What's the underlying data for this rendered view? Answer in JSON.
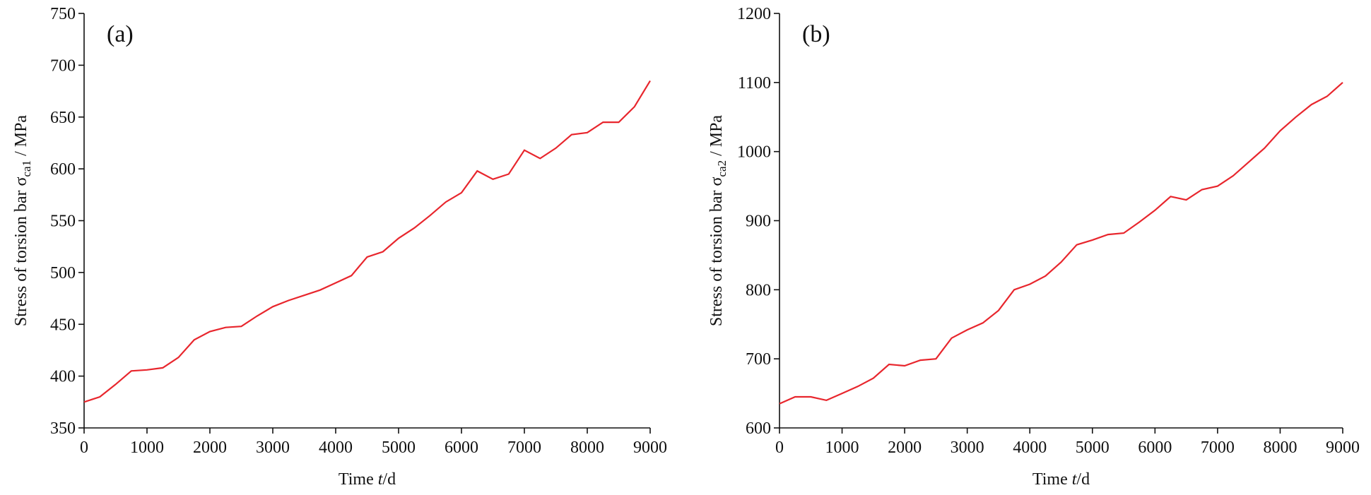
{
  "chart_data": [
    {
      "type": "line",
      "panel_label": "(a)",
      "ylabel": {
        "main": "Stress of torsion bar σ",
        "sub": "ca1",
        "unit": " / MPa"
      },
      "xlabel": {
        "main": "Time ",
        "italic": "t",
        "unit": "/d"
      },
      "xlim": [
        0,
        9000
      ],
      "xticks": [
        0,
        1000,
        2000,
        3000,
        4000,
        5000,
        6000,
        7000,
        8000,
        9000
      ],
      "ylim": [
        350,
        750
      ],
      "yticks": [
        350,
        400,
        450,
        500,
        550,
        600,
        650,
        700,
        750
      ],
      "x": [
        0,
        250,
        500,
        750,
        1000,
        1250,
        1500,
        1750,
        2000,
        2250,
        2500,
        2750,
        3000,
        3250,
        3500,
        3750,
        4000,
        4250,
        4500,
        4750,
        5000,
        5250,
        5500,
        5750,
        6000,
        6250,
        6500,
        6750,
        7000,
        7250,
        7500,
        7750,
        8000,
        8250,
        8500,
        8750,
        9000
      ],
      "series": [
        {
          "color": "#e8262d",
          "values": [
            375,
            380,
            392,
            405,
            406,
            408,
            418,
            435,
            443,
            447,
            448,
            458,
            467,
            473,
            478,
            483,
            490,
            497,
            515,
            520,
            533,
            543,
            555,
            568,
            577,
            598,
            590,
            595,
            618,
            610,
            620,
            633,
            635,
            645,
            645,
            660,
            685
          ]
        }
      ]
    },
    {
      "type": "line",
      "panel_label": "(b)",
      "ylabel": {
        "main": "Stress of torsion bar σ",
        "sub": "ca2",
        "unit": " / MPa"
      },
      "xlabel": {
        "main": "Time ",
        "italic": "t",
        "unit": "/d"
      },
      "xlim": [
        0,
        9000
      ],
      "xticks": [
        0,
        1000,
        2000,
        3000,
        4000,
        5000,
        6000,
        7000,
        8000,
        9000
      ],
      "ylim": [
        600,
        1200
      ],
      "yticks": [
        600,
        700,
        800,
        900,
        1000,
        1100,
        1200
      ],
      "x": [
        0,
        250,
        500,
        750,
        1000,
        1250,
        1500,
        1750,
        2000,
        2250,
        2500,
        2750,
        3000,
        3250,
        3500,
        3750,
        4000,
        4250,
        4500,
        4750,
        5000,
        5250,
        5500,
        5750,
        6000,
        6250,
        6500,
        6750,
        7000,
        7250,
        7500,
        7750,
        8000,
        8250,
        8500,
        8750,
        9000
      ],
      "series": [
        {
          "color": "#e8262d",
          "values": [
            635,
            645,
            645,
            640,
            650,
            660,
            672,
            692,
            690,
            698,
            700,
            730,
            742,
            752,
            770,
            800,
            808,
            820,
            840,
            865,
            872,
            880,
            882,
            898,
            915,
            935,
            930,
            945,
            950,
            965,
            985,
            1005,
            1030,
            1050,
            1068,
            1080,
            1100
          ]
        }
      ]
    }
  ]
}
